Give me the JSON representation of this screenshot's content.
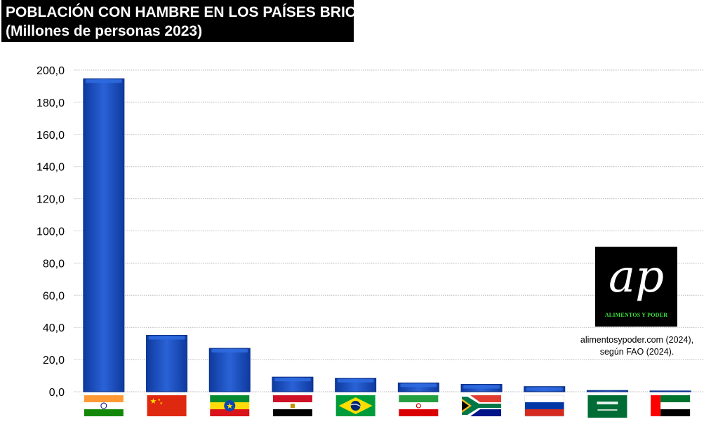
{
  "title": {
    "line1": "POBLACIÓN CON HAMBRE EN LOS PAÍSES BRICS+",
    "line2": "(Millones de personas 2023)"
  },
  "logo": {
    "mark": "ap",
    "text": "ALIMENTOS Y PODER"
  },
  "source": {
    "line1": "alimentosypoder.com (2024),",
    "line2": "según FAO (2024)."
  },
  "colors": {
    "bar": "#1a4fc4",
    "bar_top": "#2f6be0",
    "bar_edge": "#0b2f86",
    "grid": "#b5b5b5"
  },
  "chart_data": {
    "type": "bar",
    "title": "POBLACIÓN CON HAMBRE EN LOS PAÍSES BRICS+",
    "subtitle": "(Millones de personas 2023)",
    "xlabel": "",
    "ylabel": "",
    "ylim": [
      0,
      200
    ],
    "yticks": [
      0,
      20,
      40,
      60,
      80,
      100,
      120,
      140,
      160,
      180,
      200
    ],
    "ytick_labels": [
      "0,0",
      "20,0",
      "40,0",
      "60,0",
      "80,0",
      "100,0",
      "120,0",
      "140,0",
      "160,0",
      "180,0",
      "200,0"
    ],
    "grid": true,
    "categories": [
      "india-flag",
      "china-flag",
      "ethiopia-flag",
      "egypt-flag",
      "brazil-flag",
      "iran-flag",
      "south-africa-flag",
      "russia-flag",
      "saudi-arabia-flag",
      "uae-flag"
    ],
    "values": [
      194.6,
      35.1,
      27.0,
      9.1,
      8.4,
      5.5,
      4.6,
      3.2,
      0.8,
      0.3
    ]
  }
}
